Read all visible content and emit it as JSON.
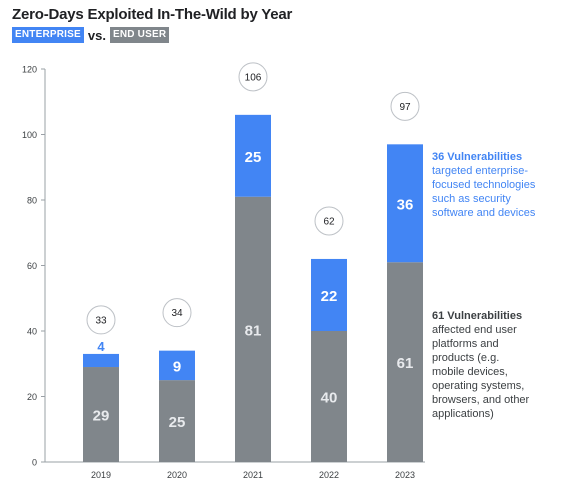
{
  "chart_data": {
    "type": "bar",
    "stacked": true,
    "title": "Zero-Days Exploited In-The-Wild by Year",
    "legend": [
      {
        "label": "ENTERPRISE",
        "color": "#4285f4"
      },
      {
        "label": "END USER",
        "color": "#80868b"
      }
    ],
    "legend_separator": "vs.",
    "categories": [
      "2019",
      "2020",
      "2021",
      "2022",
      "2023"
    ],
    "series": [
      {
        "name": "END USER",
        "color": "#80868b",
        "values": [
          29,
          25,
          81,
          40,
          61
        ]
      },
      {
        "name": "ENTERPRISE",
        "color": "#4285f4",
        "values": [
          4,
          9,
          25,
          22,
          36
        ]
      }
    ],
    "totals": [
      "33",
      "34",
      "106",
      "62",
      "97"
    ],
    "ylim": [
      0,
      120
    ],
    "yticks": [
      0,
      20,
      40,
      60,
      80,
      100,
      120
    ],
    "grid": false,
    "xlabel": "",
    "ylabel": ""
  },
  "annotations": {
    "enterprise": {
      "head": "36 Vulnerabilities",
      "lines": [
        "targeted enterprise-",
        "focused technologies",
        "such as security",
        "software and devices"
      ],
      "color": "#4285f4"
    },
    "end_user": {
      "head": "61 Vulnerabilities",
      "lines": [
        "affected end user",
        "platforms and",
        "products (e.g.",
        "mobile devices,",
        "operating systems,",
        "browsers, and other",
        "applications)"
      ],
      "color": "#3c4043"
    }
  }
}
